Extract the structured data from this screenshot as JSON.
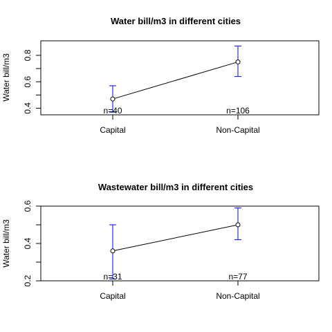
{
  "chart_data": [
    {
      "type": "line",
      "title": "Water bill/m3 in different cities",
      "xlabel": "",
      "ylabel": "Water bill/m3",
      "categories": [
        "Capital",
        "Non-Capital"
      ],
      "values": [
        0.47,
        0.75
      ],
      "error_bars": [
        {
          "lower": 0.37,
          "upper": 0.57
        },
        {
          "lower": 0.64,
          "upper": 0.87
        }
      ],
      "n_labels": [
        "n=40",
        "n=106"
      ],
      "ylim": [
        0.35,
        0.91
      ],
      "yticks": [
        0.4,
        0.6,
        0.8
      ],
      "ytick_labels": [
        "0.4",
        "0.6",
        "0.8"
      ],
      "colors": {
        "line": "#000000",
        "error_bar": "#0000ff"
      },
      "grid": false
    },
    {
      "type": "line",
      "title": "Wastewater bill/m3 in different cities",
      "xlabel": "",
      "ylabel": "Water bill/m3",
      "categories": [
        "Capital",
        "Non-Capital"
      ],
      "values": [
        0.36,
        0.5
      ],
      "error_bars": [
        {
          "lower": 0.21,
          "upper": 0.5
        },
        {
          "lower": 0.42,
          "upper": 0.59
        }
      ],
      "n_labels": [
        "n=31",
        "n=77"
      ],
      "ylim": [
        0.2,
        0.6
      ],
      "yticks": [
        0.2,
        0.4,
        0.6
      ],
      "ytick_labels": [
        "0.2",
        "0.4",
        "0.6"
      ],
      "colors": {
        "line": "#000000",
        "error_bar": "#0000ff"
      },
      "grid": false
    }
  ]
}
